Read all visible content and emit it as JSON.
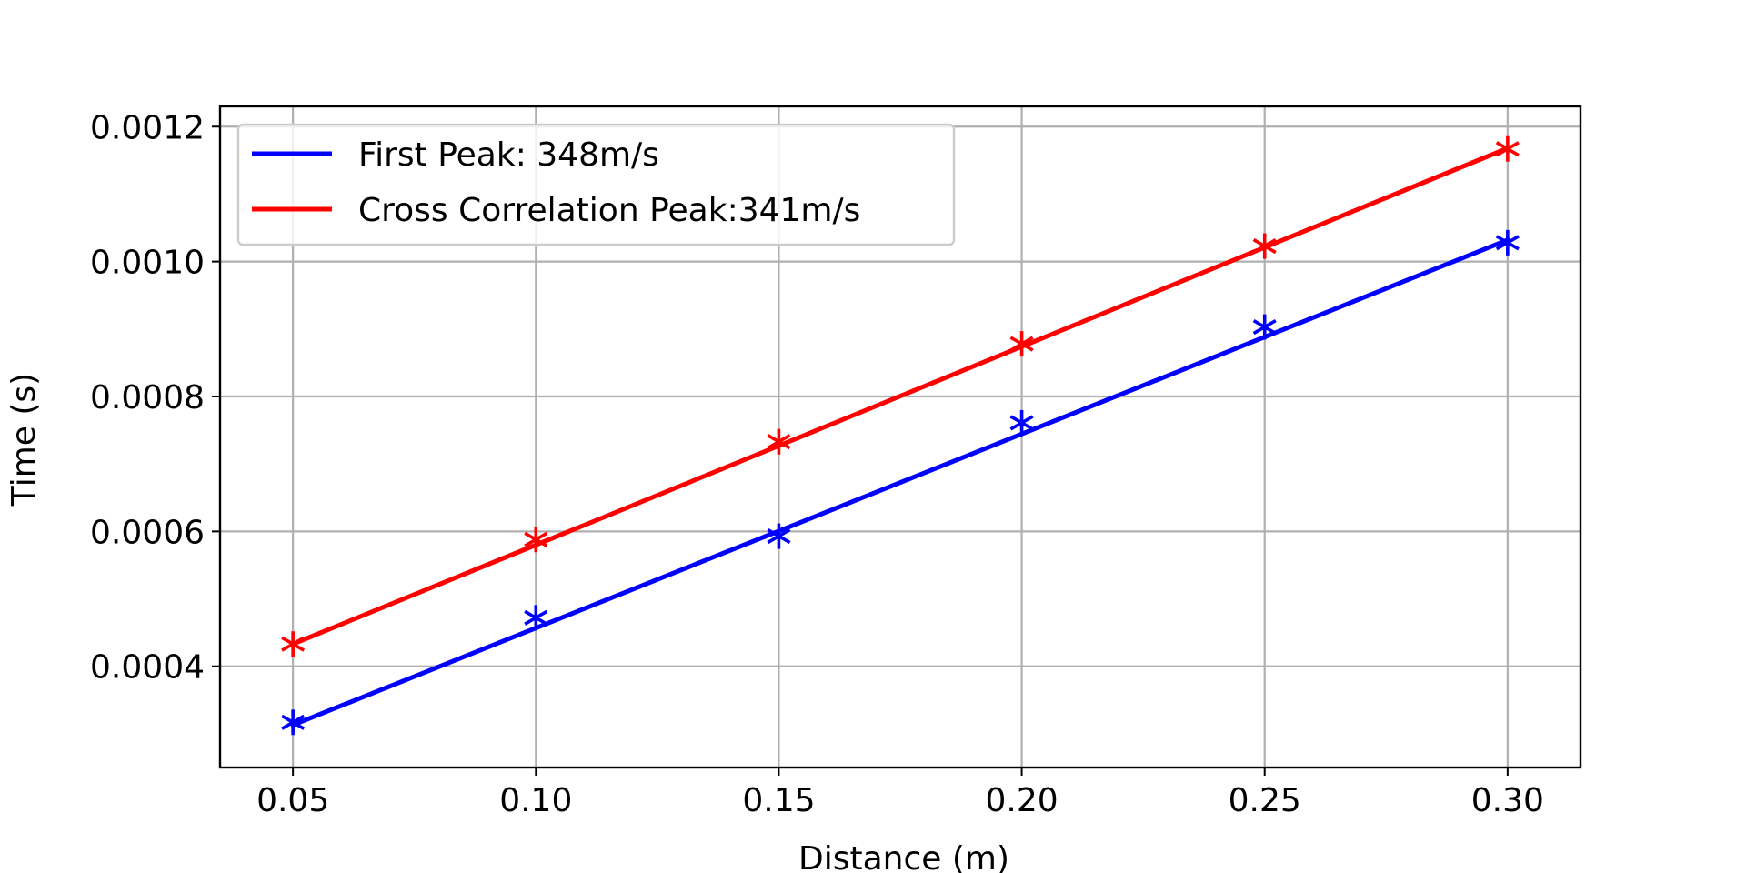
{
  "chart_data": {
    "type": "line",
    "title": "",
    "xlabel": "Distance (m)",
    "ylabel": "Time (s)",
    "xlim": [
      0.035,
      0.315
    ],
    "ylim": [
      0.00025,
      0.00123
    ],
    "xticks": [
      0.05,
      0.1,
      0.15,
      0.2,
      0.25,
      0.3
    ],
    "xtick_labels": [
      "0.05",
      "0.10",
      "0.15",
      "0.20",
      "0.25",
      "0.30"
    ],
    "yticks": [
      0.0004,
      0.0006,
      0.0008,
      0.001,
      0.0012
    ],
    "ytick_labels": [
      "0.0004",
      "0.0006",
      "0.0008",
      "0.0010",
      "0.0012"
    ],
    "grid": true,
    "legend_position": "top-left",
    "series": [
      {
        "name": "First Peak: 348m/s",
        "color": "#0000ff",
        "marker": "asterisk",
        "x": [
          0.05,
          0.1,
          0.15,
          0.2,
          0.25,
          0.3
        ],
        "y": [
          0.000317,
          0.000472,
          0.000593,
          0.000761,
          0.000903,
          0.001028
        ],
        "fit": {
          "x": [
            0.05,
            0.3
          ],
          "y": [
            0.000313,
            0.001032
          ]
        }
      },
      {
        "name": "Cross Correlation Peak:341m/s",
        "color": "#ff0000",
        "marker": "asterisk",
        "x": [
          0.05,
          0.1,
          0.15,
          0.2,
          0.25,
          0.3
        ],
        "y": [
          0.000433,
          0.000588,
          0.000733,
          0.000878,
          0.001023,
          0.001167
        ],
        "fit": {
          "x": [
            0.05,
            0.3
          ],
          "y": [
            0.000433,
            0.001168
          ]
        }
      }
    ]
  }
}
